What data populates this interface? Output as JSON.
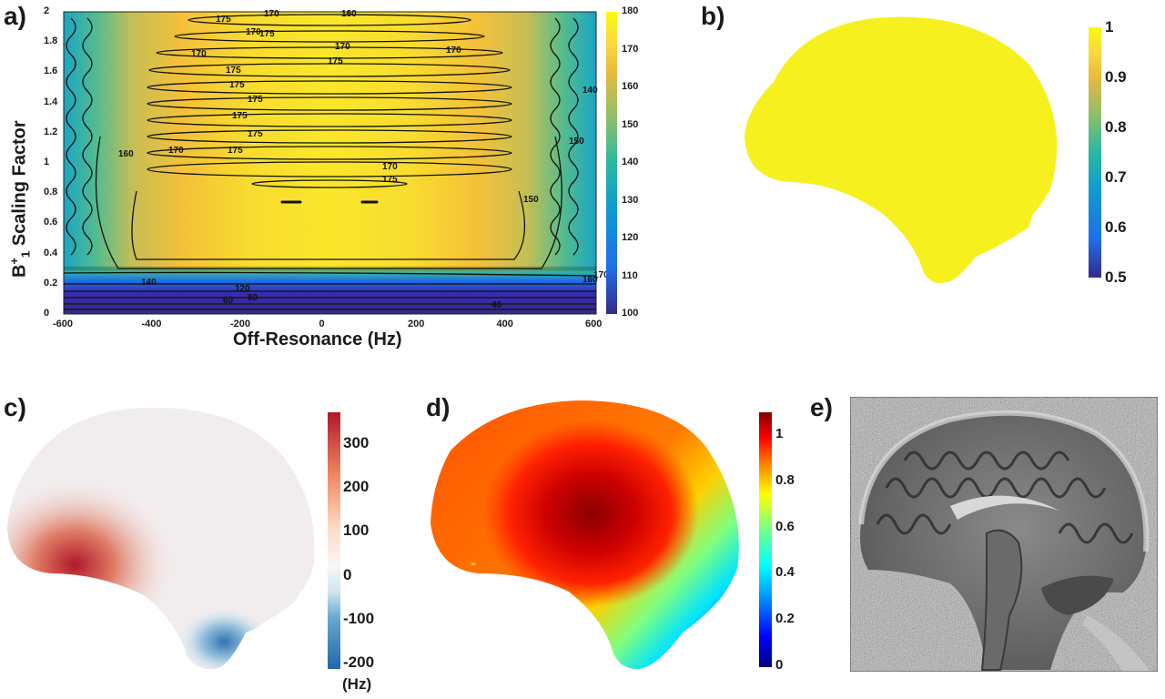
{
  "panels": {
    "a": {
      "letter": "a)",
      "xlabel": "Off-Resonance (Hz)",
      "ylabel_main": "B",
      "ylabel_sup": "+",
      "ylabel_sub": "1",
      "ylabel_rest": " Scaling Factor",
      "xticks": [
        "-600",
        "-400",
        "-200",
        "0",
        "200",
        "400",
        "600"
      ],
      "yticks": [
        "2",
        "1.8",
        "1.6",
        "1.4",
        "1.2",
        "1",
        "0.8",
        "0.6",
        "0.4",
        "0.2",
        "0"
      ],
      "colorbar_ticks": [
        "180",
        "170",
        "160",
        "150",
        "140",
        "130",
        "120",
        "110",
        "100"
      ],
      "contour_labels": [
        "170",
        "175",
        "160",
        "170",
        "175",
        "170",
        "170",
        "175",
        "170",
        "175",
        "140",
        "175",
        "175",
        "150",
        "175",
        "175",
        "160",
        "170",
        "175",
        "170",
        "175",
        "150",
        "140",
        "120",
        "80",
        "60",
        "40",
        "170",
        "160"
      ]
    },
    "b": {
      "letter": "b)",
      "colorbar_ticks": [
        "1",
        "0.9",
        "0.8",
        "0.7",
        "0.6",
        "0.5"
      ]
    },
    "c": {
      "letter": "c)",
      "colorbar_ticks": [
        "300",
        "200",
        "100",
        "0",
        "-100",
        "-200"
      ],
      "unit": "(Hz)"
    },
    "d": {
      "letter": "d)",
      "colorbar_ticks": [
        "1",
        "0.8",
        "0.6",
        "0.4",
        "0.2",
        "0"
      ]
    },
    "e": {
      "letter": "e)"
    }
  },
  "chart_data": {
    "type": "heatmap",
    "title": "",
    "xlabel": "Off-Resonance (Hz)",
    "ylabel": "B1+ Scaling Factor",
    "xlim": [
      -600,
      600
    ],
    "ylim": [
      0,
      2
    ],
    "colorbar_range": [
      100,
      180
    ],
    "contour_levels": [
      40,
      60,
      80,
      120,
      140,
      150,
      160,
      170,
      175
    ]
  },
  "colors": {
    "parula": [
      "#352a87",
      "#1f6ee8",
      "#0f9ccf",
      "#2ab7a2",
      "#8ebf6a",
      "#e7ba3e",
      "#fbd93f",
      "#f9fb0e"
    ],
    "coolwarm": [
      "#2166ac",
      "#67a9cf",
      "#d1e5f0",
      "#f7f7f7",
      "#fddbc7",
      "#ef8a62",
      "#b2182b"
    ],
    "jet": [
      "#00007f",
      "#0000ff",
      "#00ffff",
      "#7fff7f",
      "#ffff00",
      "#ff7f00",
      "#ff0000",
      "#7f0000"
    ]
  }
}
